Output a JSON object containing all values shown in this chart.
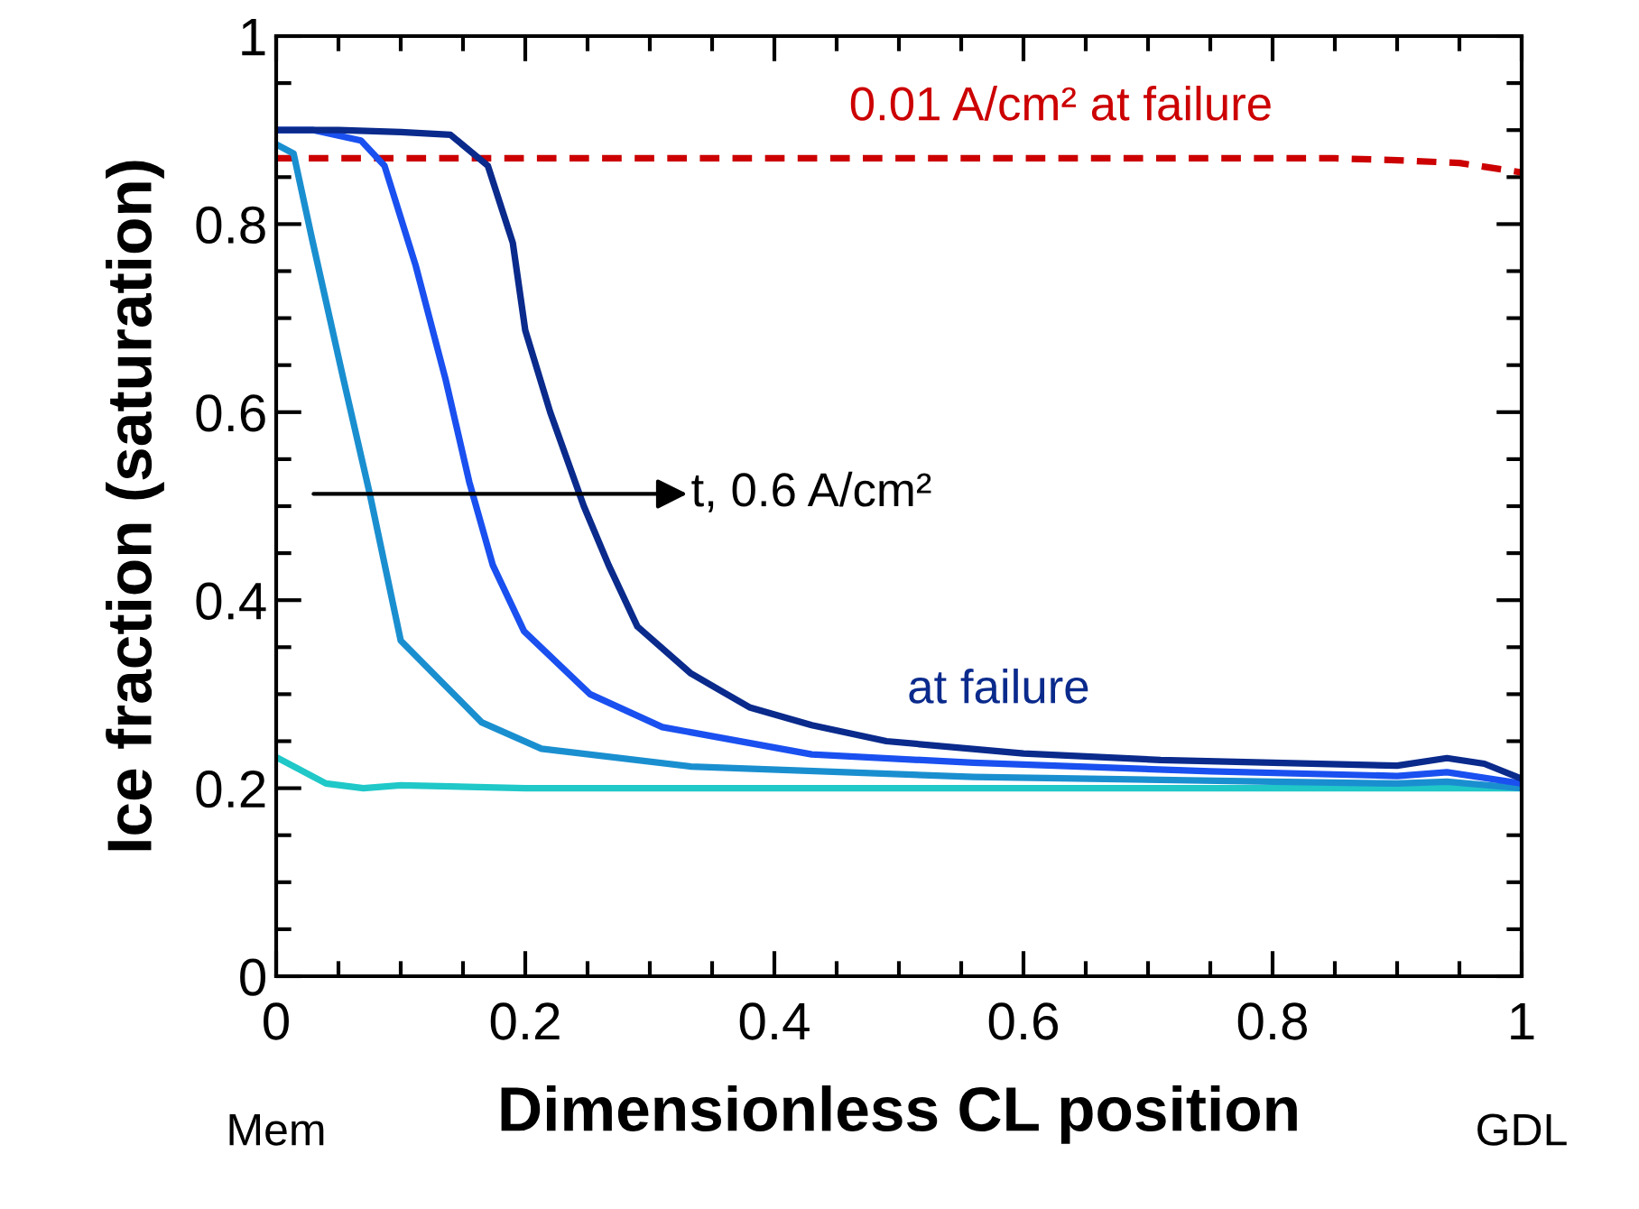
{
  "chart_data": {
    "type": "line",
    "xlabel": "Dimensionless CL position",
    "ylabel": "Ice fraction (saturation)",
    "xlim": [
      0,
      1
    ],
    "ylim": [
      0,
      1
    ],
    "xticks": [
      0,
      0.2,
      0.4,
      0.6,
      0.8,
      1
    ],
    "yticks": [
      0,
      0.2,
      0.4,
      0.6,
      0.8,
      1
    ],
    "grid": false,
    "legend": false,
    "marker": "none",
    "line_style": "solid",
    "series": [
      {
        "color": "#cc0000",
        "line_style": "dashed",
        "x": [
          0,
          0.2,
          0.4,
          0.6,
          0.8,
          0.85,
          0.9,
          0.95,
          1
        ],
        "values": [
          0.87,
          0.87,
          0.87,
          0.87,
          0.87,
          0.87,
          0.868,
          0.865,
          0.855
        ]
      },
      {
        "color": "#20c8c8",
        "x": [
          0,
          0.04,
          0.07,
          0.1,
          0.2,
          0.4,
          0.6,
          0.8,
          1
        ],
        "values": [
          0.233,
          0.205,
          0.2,
          0.203,
          0.2,
          0.2,
          0.2,
          0.2,
          0.2
        ]
      },
      {
        "color": "#1a8fd0",
        "x": [
          0,
          0.014,
          0.029,
          0.054,
          0.075,
          0.1,
          0.165,
          0.213,
          0.333,
          0.56,
          0.8,
          0.9,
          0.94,
          1
        ],
        "values": [
          0.885,
          0.875,
          0.783,
          0.635,
          0.514,
          0.357,
          0.27,
          0.242,
          0.223,
          0.212,
          0.207,
          0.205,
          0.207,
          0.2
        ]
      },
      {
        "color": "#1a50f0",
        "x": [
          0,
          0.03,
          0.068,
          0.087,
          0.112,
          0.136,
          0.155,
          0.174,
          0.199,
          0.252,
          0.31,
          0.43,
          0.56,
          0.75,
          0.9,
          0.94,
          1
        ],
        "values": [
          0.9,
          0.9,
          0.889,
          0.862,
          0.756,
          0.635,
          0.526,
          0.437,
          0.367,
          0.3,
          0.265,
          0.236,
          0.227,
          0.218,
          0.213,
          0.217,
          0.205
        ]
      },
      {
        "color": "#0a2a8c",
        "x": [
          0,
          0.05,
          0.1,
          0.14,
          0.17,
          0.19,
          0.2,
          0.22,
          0.247,
          0.267,
          0.29,
          0.333,
          0.38,
          0.43,
          0.49,
          0.6,
          0.71,
          0.9,
          0.94,
          0.97,
          1
        ],
        "values": [
          0.9,
          0.9,
          0.898,
          0.895,
          0.862,
          0.78,
          0.687,
          0.6,
          0.5,
          0.437,
          0.372,
          0.322,
          0.286,
          0.267,
          0.25,
          0.237,
          0.23,
          0.224,
          0.232,
          0.226,
          0.21
        ]
      }
    ],
    "annotations": [
      "0.01 A/cm² at failure",
      "t, 0.6 A/cm²",
      "at failure",
      "Mem",
      "GDL"
    ]
  }
}
